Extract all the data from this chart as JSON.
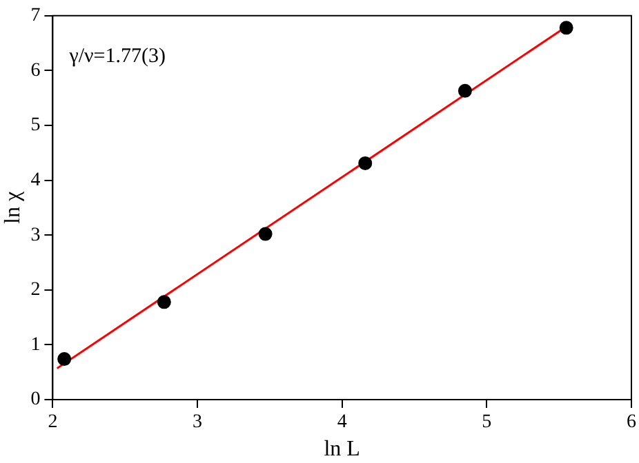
{
  "chart_data": {
    "type": "scatter",
    "xlabel": "ln L",
    "ylabel": "ln χ",
    "annotations": [
      "γ/ν=1.77(3)"
    ],
    "xlim": [
      2,
      6
    ],
    "xticks": [
      2,
      3,
      4,
      5,
      6
    ],
    "ylim": [
      0,
      7
    ],
    "yticks": [
      0,
      1,
      2,
      3,
      4,
      5,
      6,
      7
    ],
    "grid": false,
    "legend": false,
    "marker": "circle",
    "series": [
      {
        "color": "#000000",
        "x": [
          2.08,
          2.77,
          3.47,
          4.16,
          4.85,
          5.55
        ],
        "values": [
          0.74,
          1.78,
          3.02,
          4.31,
          5.63,
          6.78
        ]
      },
      {
        "type": "line",
        "color": "#ff0000",
        "marker": "none",
        "x": [
          2.03,
          5.55
        ],
        "values": [
          0.57,
          6.8
        ]
      }
    ]
  }
}
